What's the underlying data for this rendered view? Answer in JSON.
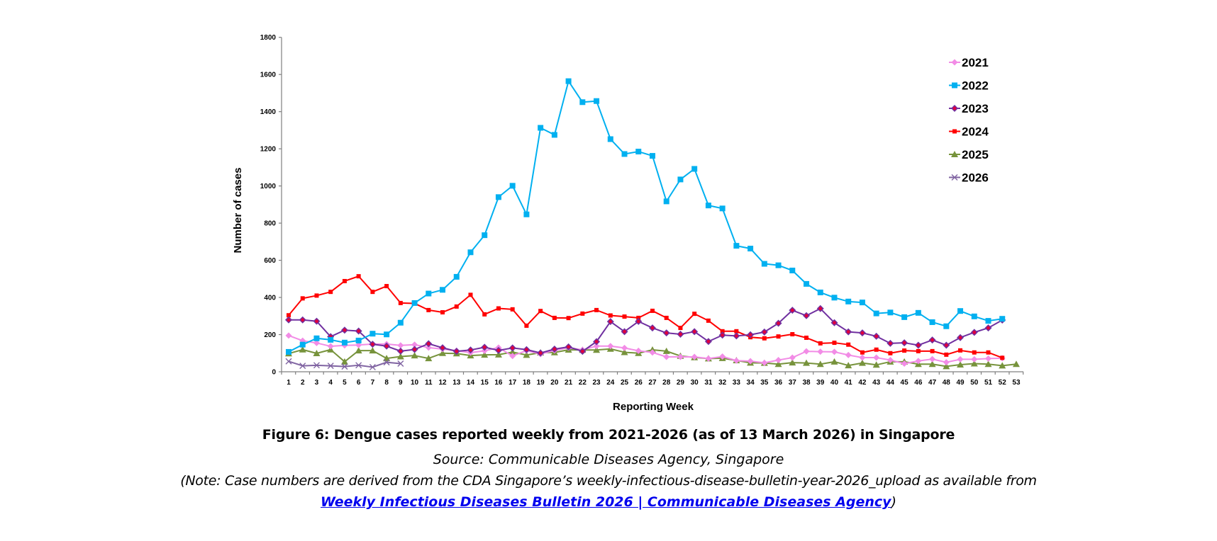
{
  "chart_data": {
    "type": "line",
    "title": "Figure 6: Dengue cases reported weekly from 2021-2026 (as of 13 March 2026) in Singapore",
    "xlabel": "Reporting Week",
    "ylabel": "Number of cases",
    "ylim": [
      0,
      1800
    ],
    "yticks": [
      0,
      200,
      400,
      600,
      800,
      1000,
      1200,
      1400,
      1600,
      1800
    ],
    "x": [
      1,
      2,
      3,
      4,
      5,
      6,
      7,
      8,
      9,
      10,
      11,
      12,
      13,
      14,
      15,
      16,
      17,
      18,
      19,
      20,
      21,
      22,
      23,
      24,
      25,
      26,
      27,
      28,
      29,
      30,
      31,
      32,
      33,
      34,
      35,
      36,
      37,
      38,
      39,
      40,
      41,
      42,
      43,
      44,
      45,
      46,
      47,
      48,
      49,
      50,
      51,
      52,
      53
    ],
    "grid": false,
    "legend_position": "top-right",
    "series": [
      {
        "name": "2021",
        "color": "#F28CE6",
        "marker": "diamond",
        "values": [
          195,
          167,
          155,
          137,
          142,
          144,
          149,
          149,
          142,
          146,
          130,
          122,
          114,
          103,
          113,
          130,
          85,
          114,
          95,
          115,
          129,
          118,
          138,
          138,
          128,
          113,
          104,
          80,
          80,
          80,
          71,
          82,
          60,
          57,
          48,
          63,
          76,
          110,
          108,
          107,
          90,
          76,
          76,
          63,
          44,
          58,
          68,
          51,
          67,
          67,
          71,
          73
        ]
      },
      {
        "name": "2022",
        "color": "#00B0F0",
        "marker": "square",
        "values": [
          107,
          146,
          180,
          172,
          157,
          168,
          205,
          201,
          264,
          370,
          421,
          441,
          511,
          643,
          735,
          940,
          1001,
          847,
          1313,
          1275,
          1564,
          1451,
          1457,
          1252,
          1172,
          1185,
          1162,
          917,
          1035,
          1092,
          895,
          879,
          678,
          663,
          581,
          573,
          545,
          473,
          427,
          399,
          378,
          373,
          314,
          319,
          294,
          317,
          267,
          245,
          327,
          298,
          274,
          285
        ]
      },
      {
        "name": "2023",
        "color": "#7030A0",
        "marker": "diamond-red",
        "values": [
          279,
          279,
          272,
          189,
          224,
          219,
          148,
          138,
          111,
          120,
          151,
          129,
          110,
          117,
          132,
          115,
          128,
          119,
          101,
          122,
          134,
          110,
          162,
          270,
          216,
          271,
          236,
          209,
          202,
          216,
          163,
          197,
          193,
          199,
          214,
          261,
          331,
          302,
          340,
          264,
          215,
          209,
          191,
          153,
          156,
          143,
          171,
          143,
          184,
          212,
          236,
          278
        ]
      },
      {
        "name": "2024",
        "color": "#FF0000",
        "marker": "small-square",
        "values": [
          304,
          395,
          410,
          430,
          488,
          514,
          430,
          461,
          370,
          368,
          332,
          320,
          351,
          414,
          309,
          341,
          336,
          248,
          327,
          290,
          289,
          313,
          332,
          303,
          297,
          290,
          328,
          290,
          236,
          312,
          275,
          218,
          218,
          186,
          180,
          190,
          202,
          183,
          153,
          156,
          146,
          104,
          119,
          100,
          114,
          111,
          111,
          92,
          115,
          104,
          104,
          75
        ]
      },
      {
        "name": "2025",
        "color": "#77933C",
        "marker": "triangle",
        "values": [
          98,
          119,
          99,
          119,
          54,
          114,
          114,
          72,
          82,
          87,
          72,
          100,
          98,
          87,
          91,
          92,
          106,
          90,
          103,
          104,
          118,
          117,
          117,
          123,
          105,
          100,
          118,
          111,
          85,
          77,
          71,
          73,
          61,
          48,
          47,
          41,
          49,
          47,
          41,
          54,
          34,
          47,
          37,
          54,
          54,
          41,
          41,
          29,
          38,
          44,
          41,
          33,
          41
        ]
      },
      {
        "name": "2026",
        "color": "#8064A2",
        "marker": "x",
        "values": [
          56,
          32,
          35,
          32,
          28,
          35,
          25,
          51,
          44
        ]
      }
    ]
  },
  "caption": {
    "title": "Figure 6: Dengue cases reported weekly from 2021-2026 (as of 13 March 2026) in Singapore",
    "source": "Source: Communicable Diseases Agency, Singapore",
    "note": "(Note: Case numbers are derived from the CDA Singapore’s weekly-infectious-disease-bulletin-year-2026_upload as available from",
    "link_text": "Weekly Infectious Diseases Bulletin 2026 | Communicable Diseases Agency",
    "link_suffix": ")"
  }
}
